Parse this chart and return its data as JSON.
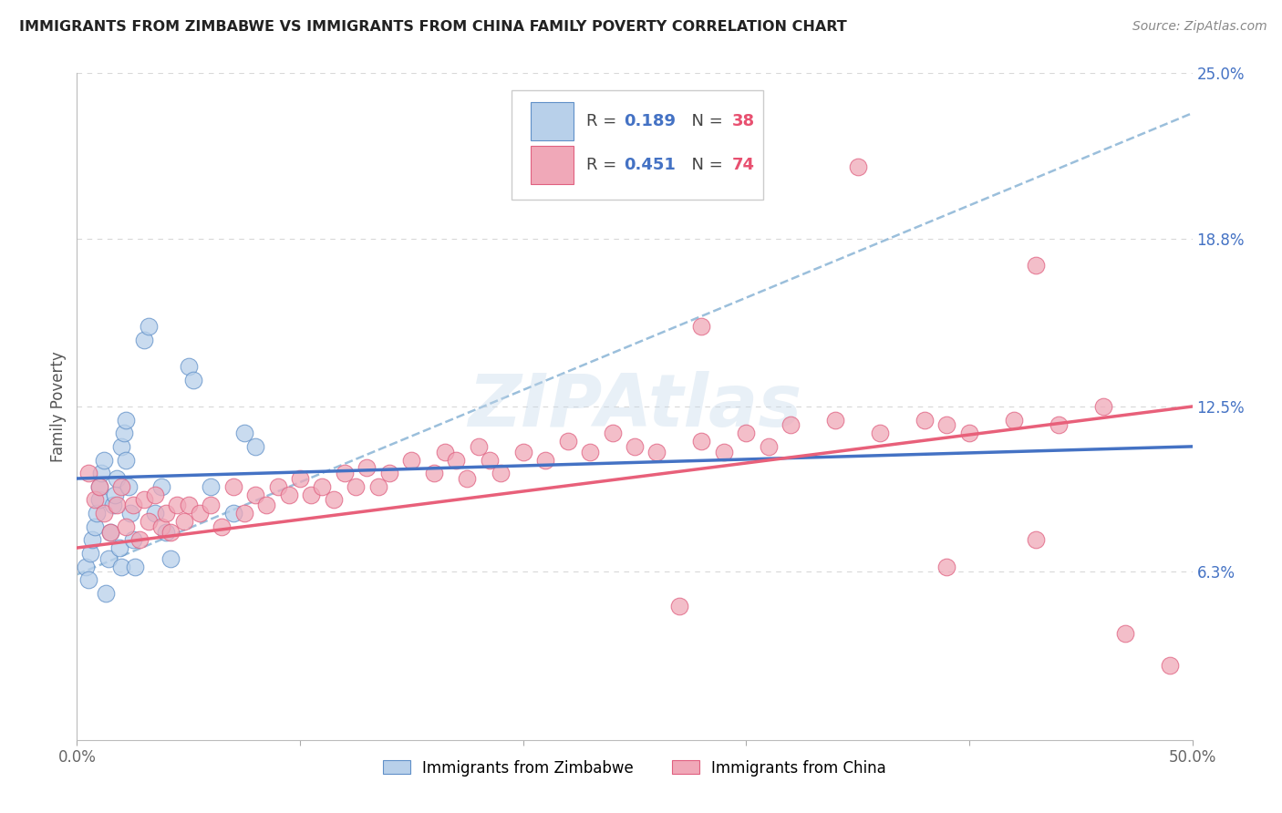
{
  "title": "IMMIGRANTS FROM ZIMBABWE VS IMMIGRANTS FROM CHINA FAMILY POVERTY CORRELATION CHART",
  "source": "Source: ZipAtlas.com",
  "ylabel": "Family Poverty",
  "x_min": 0.0,
  "x_max": 0.5,
  "y_min": 0.0,
  "y_max": 0.25,
  "y_ticks_right": [
    0.25,
    0.188,
    0.125,
    0.063
  ],
  "y_tick_labels_right": [
    "25.0%",
    "18.8%",
    "12.5%",
    "6.3%"
  ],
  "color_zimbabwe_fill": "#b8d0ea",
  "color_zimbabwe_edge": "#6090c8",
  "color_china_fill": "#f0a8b8",
  "color_china_edge": "#e06080",
  "trendline_blue_color": "#4472c4",
  "trendline_pink_color": "#e8607a",
  "dashed_line_color": "#90b8d8",
  "background_color": "#ffffff",
  "grid_color": "#d8d8d8",
  "zim_x": [
    0.004,
    0.005,
    0.006,
    0.007,
    0.008,
    0.009,
    0.01,
    0.01,
    0.011,
    0.012,
    0.013,
    0.014,
    0.015,
    0.016,
    0.017,
    0.018,
    0.019,
    0.02,
    0.02,
    0.021,
    0.022,
    0.022,
    0.023,
    0.024,
    0.025,
    0.026,
    0.03,
    0.032,
    0.035,
    0.038,
    0.04,
    0.042,
    0.05,
    0.052,
    0.06,
    0.07,
    0.075,
    0.08
  ],
  "zim_y": [
    0.065,
    0.06,
    0.07,
    0.075,
    0.08,
    0.085,
    0.09,
    0.095,
    0.1,
    0.105,
    0.055,
    0.068,
    0.078,
    0.088,
    0.092,
    0.098,
    0.072,
    0.065,
    0.11,
    0.115,
    0.12,
    0.105,
    0.095,
    0.085,
    0.075,
    0.065,
    0.15,
    0.155,
    0.085,
    0.095,
    0.078,
    0.068,
    0.14,
    0.135,
    0.095,
    0.085,
    0.115,
    0.11
  ],
  "chi_x": [
    0.005,
    0.008,
    0.01,
    0.012,
    0.015,
    0.018,
    0.02,
    0.022,
    0.025,
    0.028,
    0.03,
    0.032,
    0.035,
    0.038,
    0.04,
    0.042,
    0.045,
    0.048,
    0.05,
    0.055,
    0.06,
    0.065,
    0.07,
    0.075,
    0.08,
    0.085,
    0.09,
    0.095,
    0.1,
    0.105,
    0.11,
    0.115,
    0.12,
    0.125,
    0.13,
    0.135,
    0.14,
    0.15,
    0.16,
    0.165,
    0.17,
    0.175,
    0.18,
    0.185,
    0.19,
    0.2,
    0.21,
    0.22,
    0.23,
    0.24,
    0.25,
    0.26,
    0.27,
    0.28,
    0.29,
    0.3,
    0.31,
    0.32,
    0.34,
    0.36,
    0.38,
    0.39,
    0.4,
    0.42,
    0.44,
    0.46,
    0.35,
    0.28,
    0.43,
    0.43,
    0.39,
    0.47,
    0.49
  ],
  "chi_y": [
    0.1,
    0.09,
    0.095,
    0.085,
    0.078,
    0.088,
    0.095,
    0.08,
    0.088,
    0.075,
    0.09,
    0.082,
    0.092,
    0.08,
    0.085,
    0.078,
    0.088,
    0.082,
    0.088,
    0.085,
    0.088,
    0.08,
    0.095,
    0.085,
    0.092,
    0.088,
    0.095,
    0.092,
    0.098,
    0.092,
    0.095,
    0.09,
    0.1,
    0.095,
    0.102,
    0.095,
    0.1,
    0.105,
    0.1,
    0.108,
    0.105,
    0.098,
    0.11,
    0.105,
    0.1,
    0.108,
    0.105,
    0.112,
    0.108,
    0.115,
    0.11,
    0.108,
    0.05,
    0.112,
    0.108,
    0.115,
    0.11,
    0.118,
    0.12,
    0.115,
    0.12,
    0.118,
    0.115,
    0.12,
    0.118,
    0.125,
    0.215,
    0.155,
    0.178,
    0.075,
    0.065,
    0.04,
    0.028
  ],
  "zim_trend_x": [
    0.0,
    0.5
  ],
  "zim_trend_y": [
    0.098,
    0.11
  ],
  "chi_trend_x": [
    0.0,
    0.5
  ],
  "chi_trend_y": [
    0.072,
    0.125
  ],
  "dashed_trend_x": [
    0.0,
    0.5
  ],
  "dashed_trend_y": [
    0.062,
    0.235
  ]
}
